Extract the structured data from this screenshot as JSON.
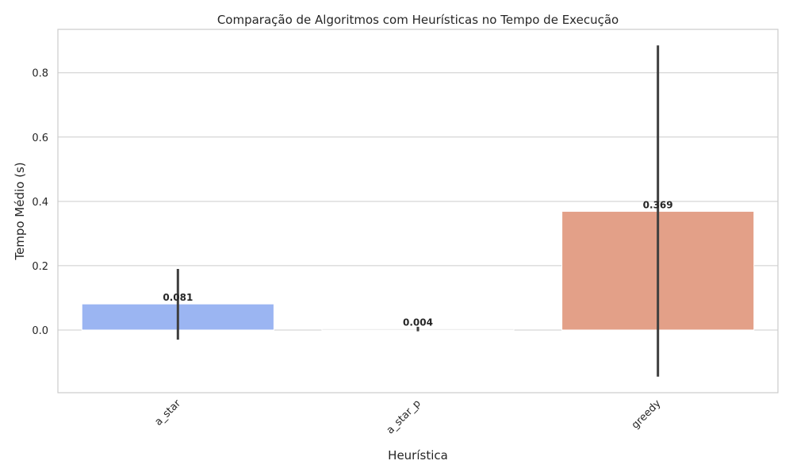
{
  "chart_data": {
    "type": "bar",
    "title": "Comparação de Algoritmos com Heurísticas no Tempo de Execução",
    "xlabel": "Heurística",
    "ylabel": "Tempo Médio (s)",
    "categories": [
      "a_star",
      "a_star_p",
      "greedy"
    ],
    "values": [
      0.081,
      0.004,
      0.369
    ],
    "value_labels": [
      "0.081",
      "0.004",
      "0.369"
    ],
    "error_bars": [
      {
        "low": -0.03,
        "high": 0.19
      },
      {
        "low": -0.004,
        "high": 0.01
      },
      {
        "low": -0.145,
        "high": 0.885
      }
    ],
    "colors": [
      "#9bb5f2",
      "#dddcdb",
      "#e3a088"
    ],
    "yticks": [
      0.0,
      0.2,
      0.4,
      0.6,
      0.8
    ],
    "ytick_labels": [
      "0.0",
      "0.2",
      "0.4",
      "0.6",
      "0.8"
    ],
    "ylim": [
      -0.195,
      0.935
    ],
    "grid": "horizontal",
    "legend": "none"
  }
}
